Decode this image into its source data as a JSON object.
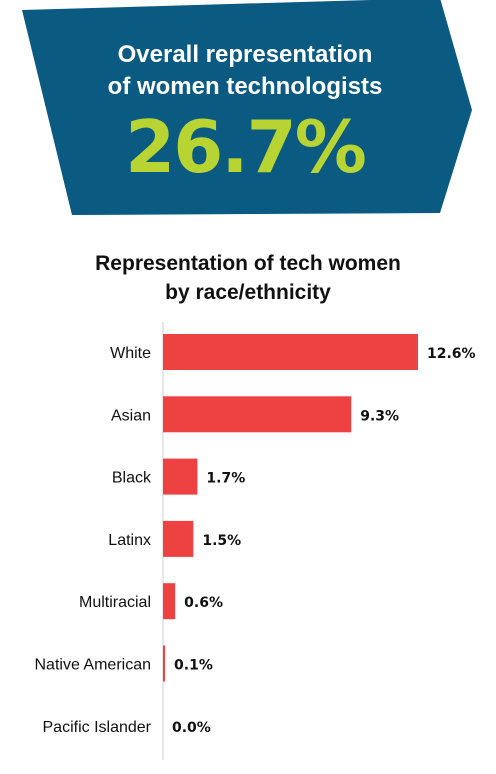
{
  "banner": {
    "line1": "Overall representation",
    "line2": "of women technologists",
    "stat": "26.7%",
    "colors": {
      "background": "#0a5a82",
      "stat": "#b7d433",
      "text": "#ffffff"
    }
  },
  "chart_data": {
    "type": "bar",
    "orientation": "horizontal",
    "title_lines": [
      "Representation of tech women",
      "by race/ethnicity"
    ],
    "categories": [
      "White",
      "Asian",
      "Black",
      "Latinx",
      "Multiracial",
      "Native American",
      "Pacific Islander"
    ],
    "values": [
      12.6,
      9.3,
      1.7,
      1.5,
      0.6,
      0.1,
      0.0
    ],
    "value_labels": [
      "12.6%",
      "9.3%",
      "1.7%",
      "1.5%",
      "0.6%",
      "0.1%",
      "0.0%"
    ],
    "bar_color": "#ee4141",
    "axis_color": "#cccccc",
    "xlim": [
      0,
      12.6
    ],
    "grid": false,
    "legend": "none"
  }
}
